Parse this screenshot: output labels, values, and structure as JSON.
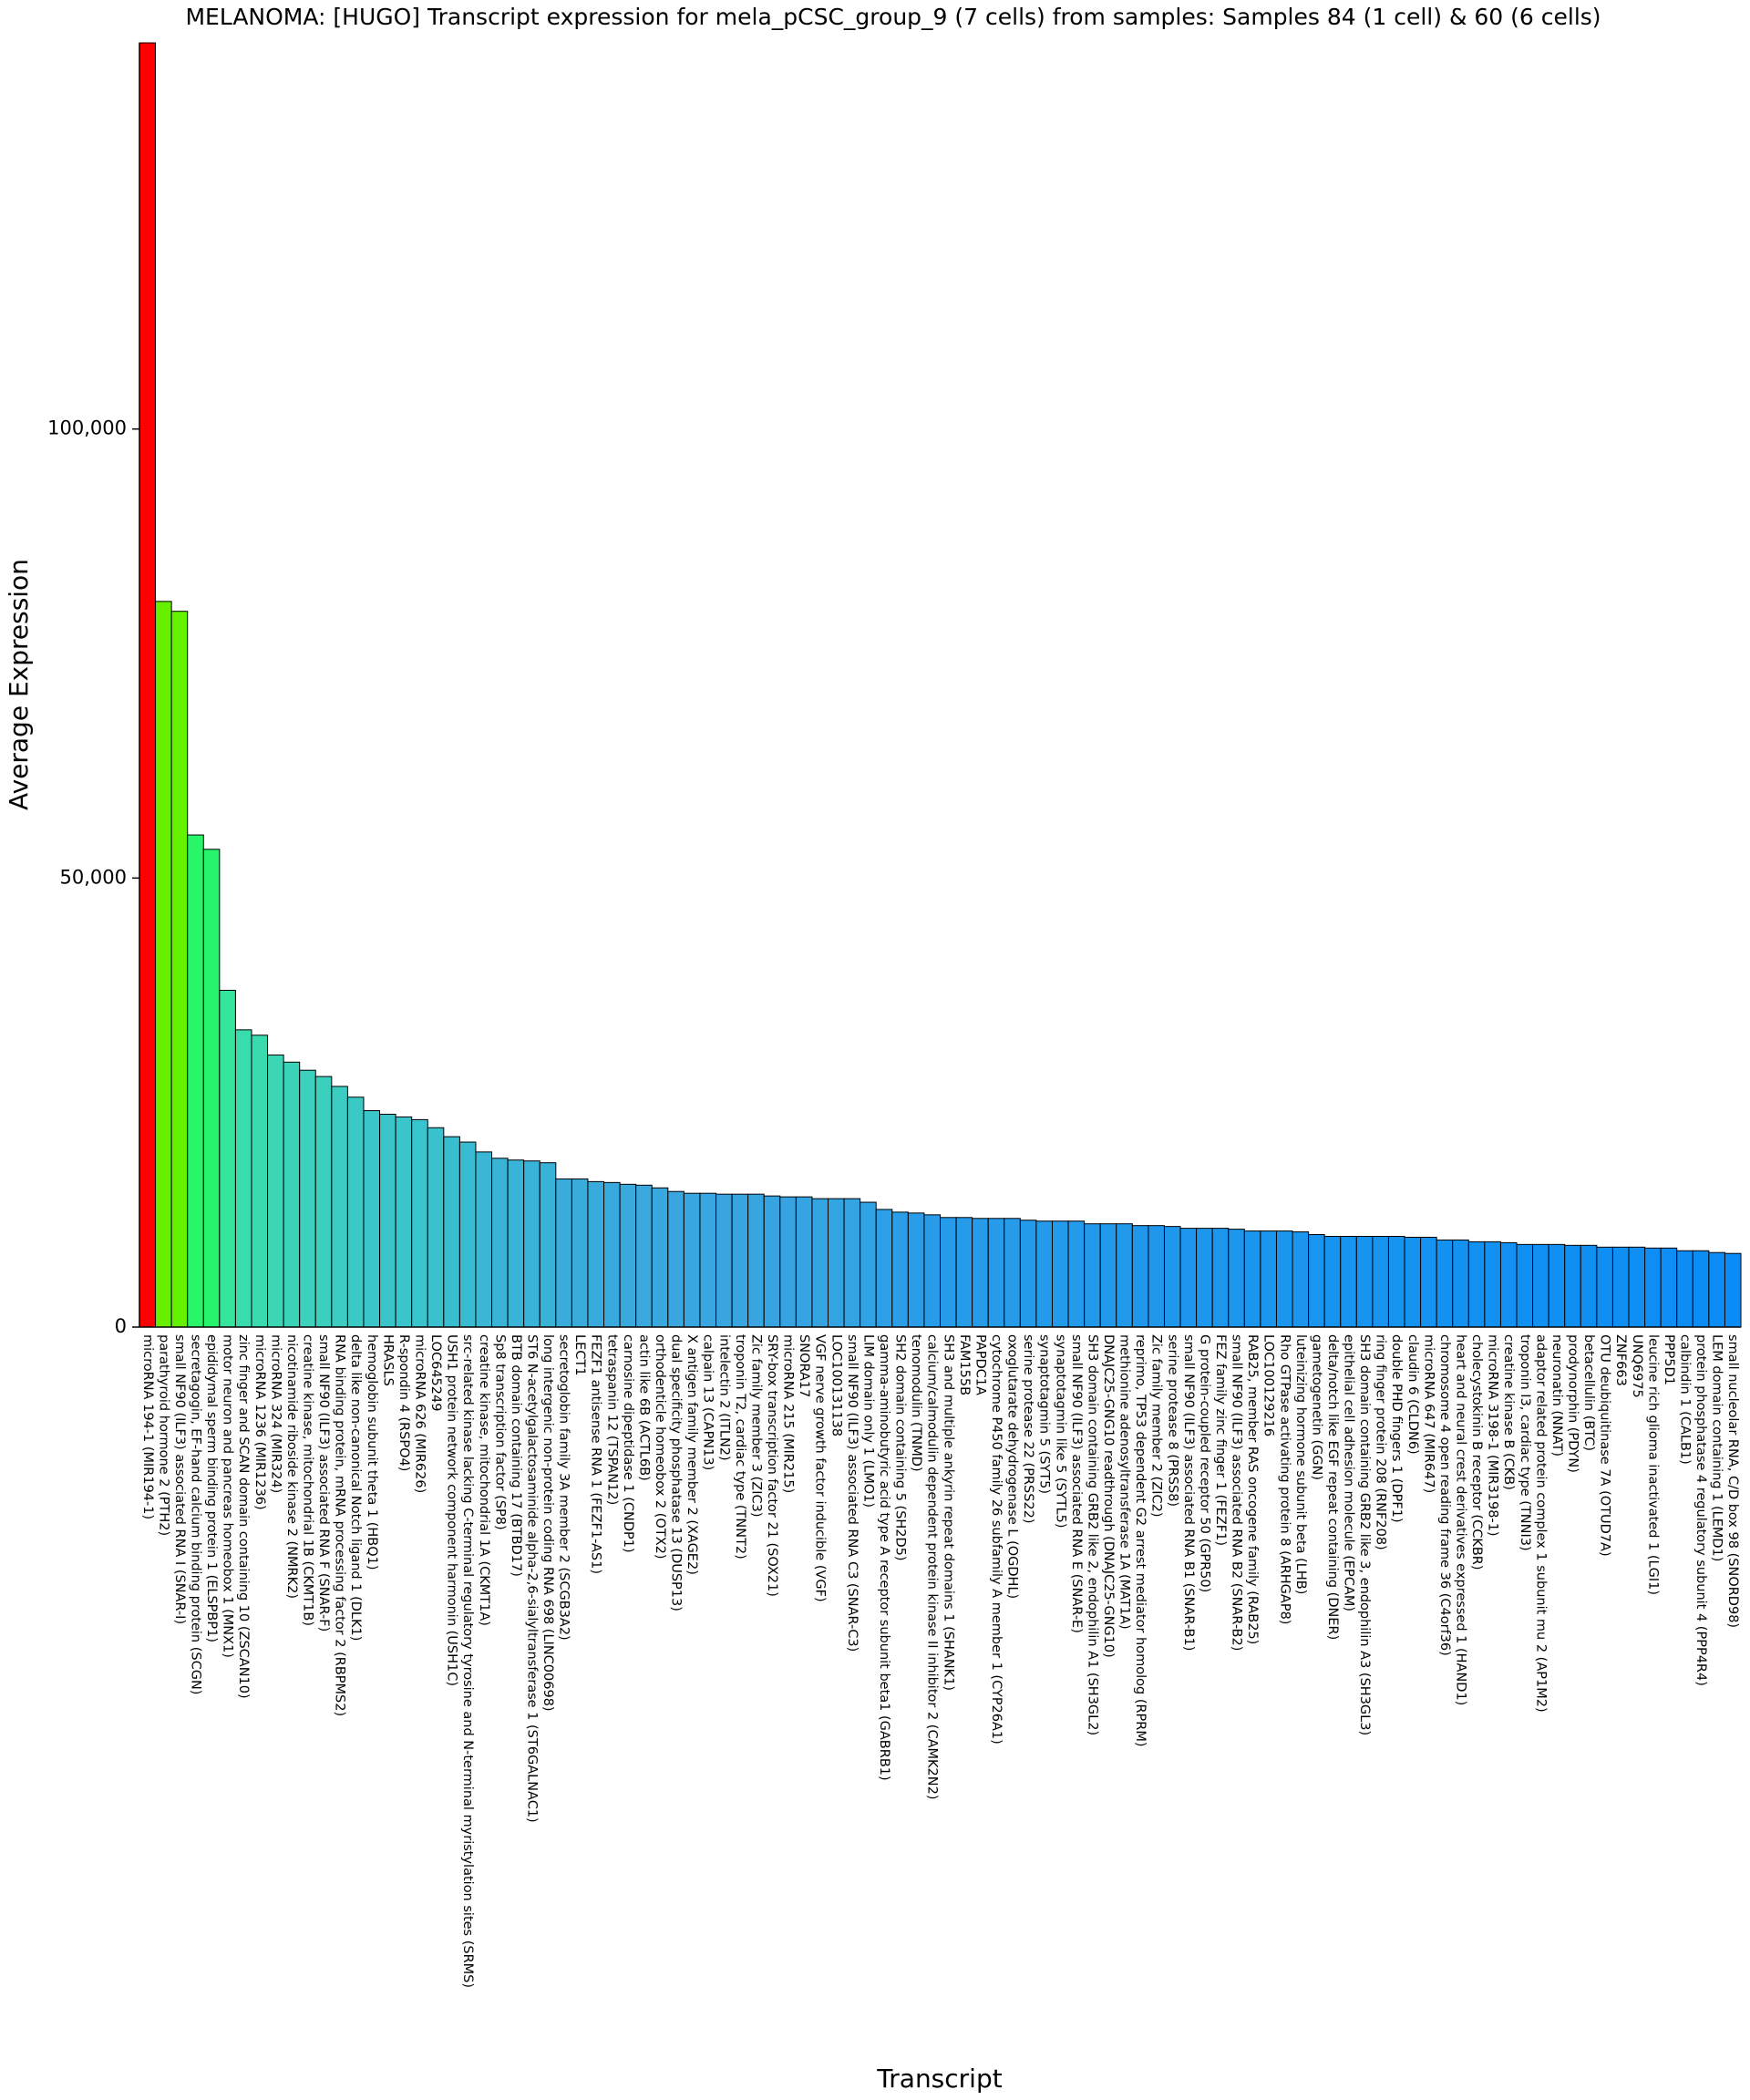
{
  "chart_data": {
    "type": "bar",
    "title": "MELANOMA: [HUGO] Transcript expression for mela_pCSC_group_9 (7 cells) from samples: Samples 84 (1 cell) & 60 (6 cells)",
    "x_label": "Transcript",
    "y_label": "Average Expression",
    "categories": [
      "microRNA 194-1 (MIR194-1)",
      "parathyroid hormone 2 (PTH2)",
      "small NF90 (ILF3) associated RNA I (SNAR-I)",
      "secretagogin, EF-hand calcium binding protein (SCGN)",
      "epididymal sperm binding protein 1 (ELSPBP1)",
      "motor neuron and pancreas homeobox 1 (MNX1)",
      "zinc finger and SCAN domain containing 10 (ZSCAN10)",
      "microRNA 1236 (MIR1236)",
      "microRNA 324 (MIR324)",
      "nicotinamide riboside kinase 2 (NMRK2)",
      "creatine kinase, mitochondrial 1B (CKMT1B)",
      "small NF90 (ILF3) associated RNA F (SNAR-F)",
      "RNA binding protein, mRNA processing factor 2 (RBPMS2)",
      "delta like non-canonical Notch ligand 1 (DLK1)",
      "hemoglobin subunit theta 1 (HBQ1)",
      "HRASLS",
      "R-spondin 4 (RSPO4)",
      "microRNA 626 (MIR626)",
      "LOC645249",
      "USH1 protein network component harmonin (USH1C)",
      "src-related kinase lacking C-terminal regulatory tyrosine and N-terminal myristylation sites (SRMS)",
      "creatine kinase, mitochondrial 1A (CKMT1A)",
      "Sp8 transcription factor (SP8)",
      "BTB domain containing 17 (BTBD17)",
      "ST6 N-acetylgalactosaminide alpha-2,6-sialyltransferase 1 (ST6GALNAC1)",
      "long intergenic non-protein coding RNA 698 (LINC00698)",
      "secretoglobin family 3A member 2 (SCGB3A2)",
      "LECT1",
      "FEZF1 antisense RNA 1 (FEZF1-AS1)",
      "tetraspanin 12 (TSPAN12)",
      "carnosine dipeptidase 1 (CNDP1)",
      "actin like 6B (ACTL6B)",
      "orthodenticle homeobox 2 (OTX2)",
      "dual specificity phosphatase 13 (DUSP13)",
      "X antigen family member 2 (XAGE2)",
      "calpain 13 (CAPN13)",
      "intelectin 2 (ITLN2)",
      "troponin T2, cardiac type (TNNT2)",
      "Zic family member 3 (ZIC3)",
      "SRY-box transcription factor 21 (SOX21)",
      "microRNA 215 (MIR215)",
      "SNORA17",
      "VGF nerve growth factor inducible (VGF)",
      "LOC100131138",
      "small NF90 (ILF3) associated RNA C3 (SNAR-C3)",
      "LIM domain only 1 (LMO1)",
      "gamma-aminobutyric acid type A receptor subunit beta1 (GABRB1)",
      "SH2 domain containing 5 (SH2D5)",
      "tenomodulin (TNMD)",
      "calcium/calmodulin dependent protein kinase II inhibitor 2 (CAMK2N2)",
      "SH3 and multiple ankyrin repeat domains 1 (SHANK1)",
      "FAM155B",
      "PAPDC1A",
      "cytochrome P450 family 26 subfamily A member 1 (CYP26A1)",
      "oxoglutarate dehydrogenase L (OGDHL)",
      "serine protease 22 (PRSS22)",
      "synaptotagmin 5 (SYT5)",
      "synaptotagmin like 5 (SYTL5)",
      "small NF90 (ILF3) associated RNA E (SNAR-E)",
      "SH3 domain containing GRB2 like 2, endophilin A1 (SH3GL2)",
      "DNAJC25-GNG10 readthrough (DNAJC25-GNG10)",
      "methionine adenosyltransferase 1A (MAT1A)",
      "reprimo, TP53 dependent G2 arrest mediator homolog (RPRM)",
      "Zic family member 2 (ZIC2)",
      "serine protease 8 (PRSS8)",
      "small NF90 (ILF3) associated RNA B1 (SNAR-B1)",
      "G protein-coupled receptor 50 (GPR50)",
      "FEZ family zinc finger 1 (FEZF1)",
      "small NF90 (ILF3) associated RNA B2 (SNAR-B2)",
      "RAB25, member RAS oncogene family (RAB25)",
      "LOC100129216",
      "Rho GTPase activating protein 8 (ARHGAP8)",
      "luteinizing hormone subunit beta (LHB)",
      "gametogenetin (GGN)",
      "delta/notch like EGF repeat containing (DNER)",
      "epithelial cell adhesion molecule (EPCAM)",
      "SH3 domain containing GRB2 like 3, endophilin A3 (SH3GL3)",
      "ring finger protein 208 (RNF208)",
      "double PHD fingers 1 (DPF1)",
      "claudin 6 (CLDN6)",
      "microRNA 647 (MIR647)",
      "chromosome 4 open reading frame 36 (C4orf36)",
      "heart and neural crest derivatives expressed 1 (HAND1)",
      "cholecystokinin B receptor (CCKBR)",
      "microRNA 3198-1 (MIR3198-1)",
      "creatine kinase B (CKB)",
      "troponin I3, cardiac type (TNNI3)",
      "adaptor related protein complex 1 subunit mu 2 (AP1M2)",
      "neuronatin (NNAT)",
      "prodynorphin (PDYN)",
      "betacellulin (BTC)",
      "OTU deubiquitinase 7A (OTUD7A)",
      "ZNF663",
      "UNQ6975",
      "leucine rich glioma inactivated 1 (LGI1)",
      "PPP5D1",
      "calbindin 1 (CALB1)",
      "protein phosphatase 4 regulatory subunit 4 (PPP4R4)",
      "LEM domain containing 1 (LEMD1)",
      "small nucleolar RNA, C/D box 98 (SNORD98)"
    ],
    "values": [
      143000,
      80800,
      79700,
      54800,
      53200,
      37500,
      33100,
      32500,
      30300,
      29500,
      28600,
      27900,
      26800,
      25600,
      24100,
      23700,
      23400,
      23100,
      22200,
      21200,
      20600,
      19500,
      18800,
      18600,
      18500,
      18300,
      16500,
      16500,
      16200,
      16100,
      15900,
      15800,
      15500,
      15100,
      14900,
      14900,
      14800,
      14800,
      14800,
      14600,
      14500,
      14500,
      14300,
      14300,
      14300,
      13900,
      13100,
      12800,
      12700,
      12500,
      12200,
      12200,
      12100,
      12100,
      12100,
      11900,
      11800,
      11800,
      11800,
      11500,
      11500,
      11500,
      11300,
      11300,
      11200,
      11000,
      11000,
      11000,
      10900,
      10700,
      10700,
      10700,
      10600,
      10300,
      10100,
      10100,
      10100,
      10100,
      10100,
      10000,
      10000,
      9700,
      9700,
      9500,
      9500,
      9400,
      9200,
      9200,
      9200,
      9100,
      9100,
      8900,
      8900,
      8900,
      8800,
      8800,
      8500,
      8500,
      8300,
      8200
    ],
    "color_stops": [
      [
        8200,
        "#0a8cf6"
      ],
      [
        15000,
        "#39a6e0"
      ],
      [
        22000,
        "#39c0cf"
      ],
      [
        30000,
        "#3cd5b8"
      ],
      [
        38000,
        "#33e699"
      ],
      [
        54000,
        "#26f56a"
      ],
      [
        80000,
        "#66f200"
      ],
      [
        143000,
        "#ff0000"
      ]
    ],
    "ylim": [
      0,
      143000
    ],
    "yticks": [
      0,
      {
        "value": 50000,
        "label": "50,000"
      },
      {
        "value": 100000,
        "label": "100,000"
      }
    ],
    "grid": false
  }
}
